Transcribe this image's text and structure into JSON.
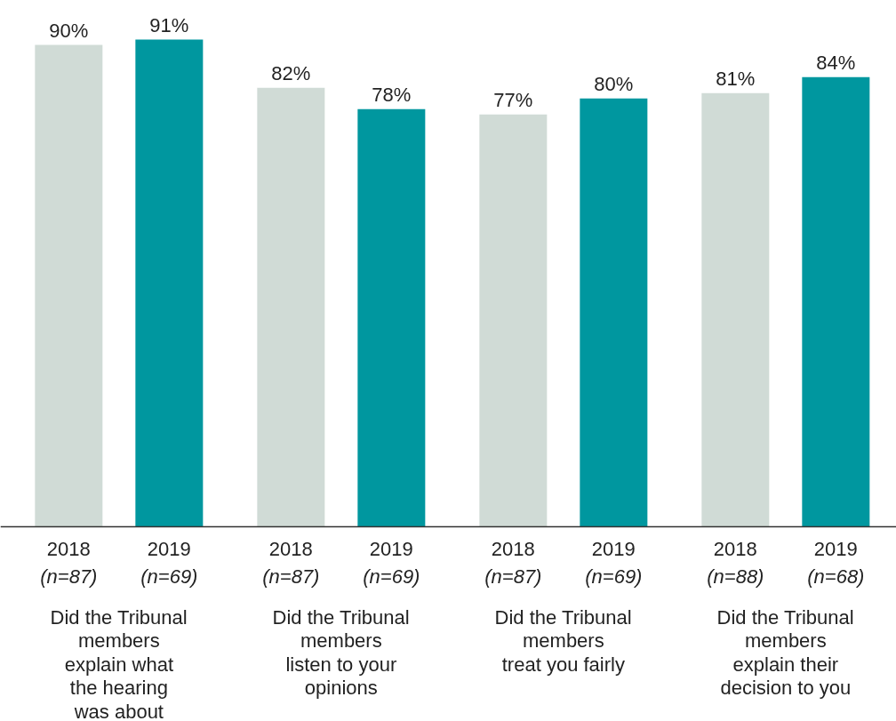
{
  "chart_data": {
    "type": "bar",
    "categories": [
      "2018\n(n=87)",
      "2019\n(n=69)",
      "2018\n(n=87)",
      "2019\n(n=69)",
      "2018\n(n=87)",
      "2019\n(n=69)",
      "2018\n(n=88)",
      "2019\n(n=68)"
    ],
    "values": [
      90,
      91,
      82,
      78,
      77,
      80,
      81,
      84
    ],
    "colors": [
      "#d0dbd6",
      "#00979f",
      "#d0dbd6",
      "#00979f",
      "#d0dbd6",
      "#00979f",
      "#d0dbd6",
      "#00979f"
    ],
    "value_labels": [
      "90%",
      "91%",
      "82%",
      "78%",
      "77%",
      "80%",
      "81%",
      "84%"
    ],
    "annotations": [
      "Did the Tribunal\nmembers\nexplain what\nthe hearing\nwas about",
      "Did the Tribunal\nmembers\nlisten to your\nopinions",
      "Did the Tribunal\nmembers\ntreat you fairly",
      "Did the Tribunal\nmembers\nexplain their\ndecision to you"
    ],
    "grid": false
  }
}
